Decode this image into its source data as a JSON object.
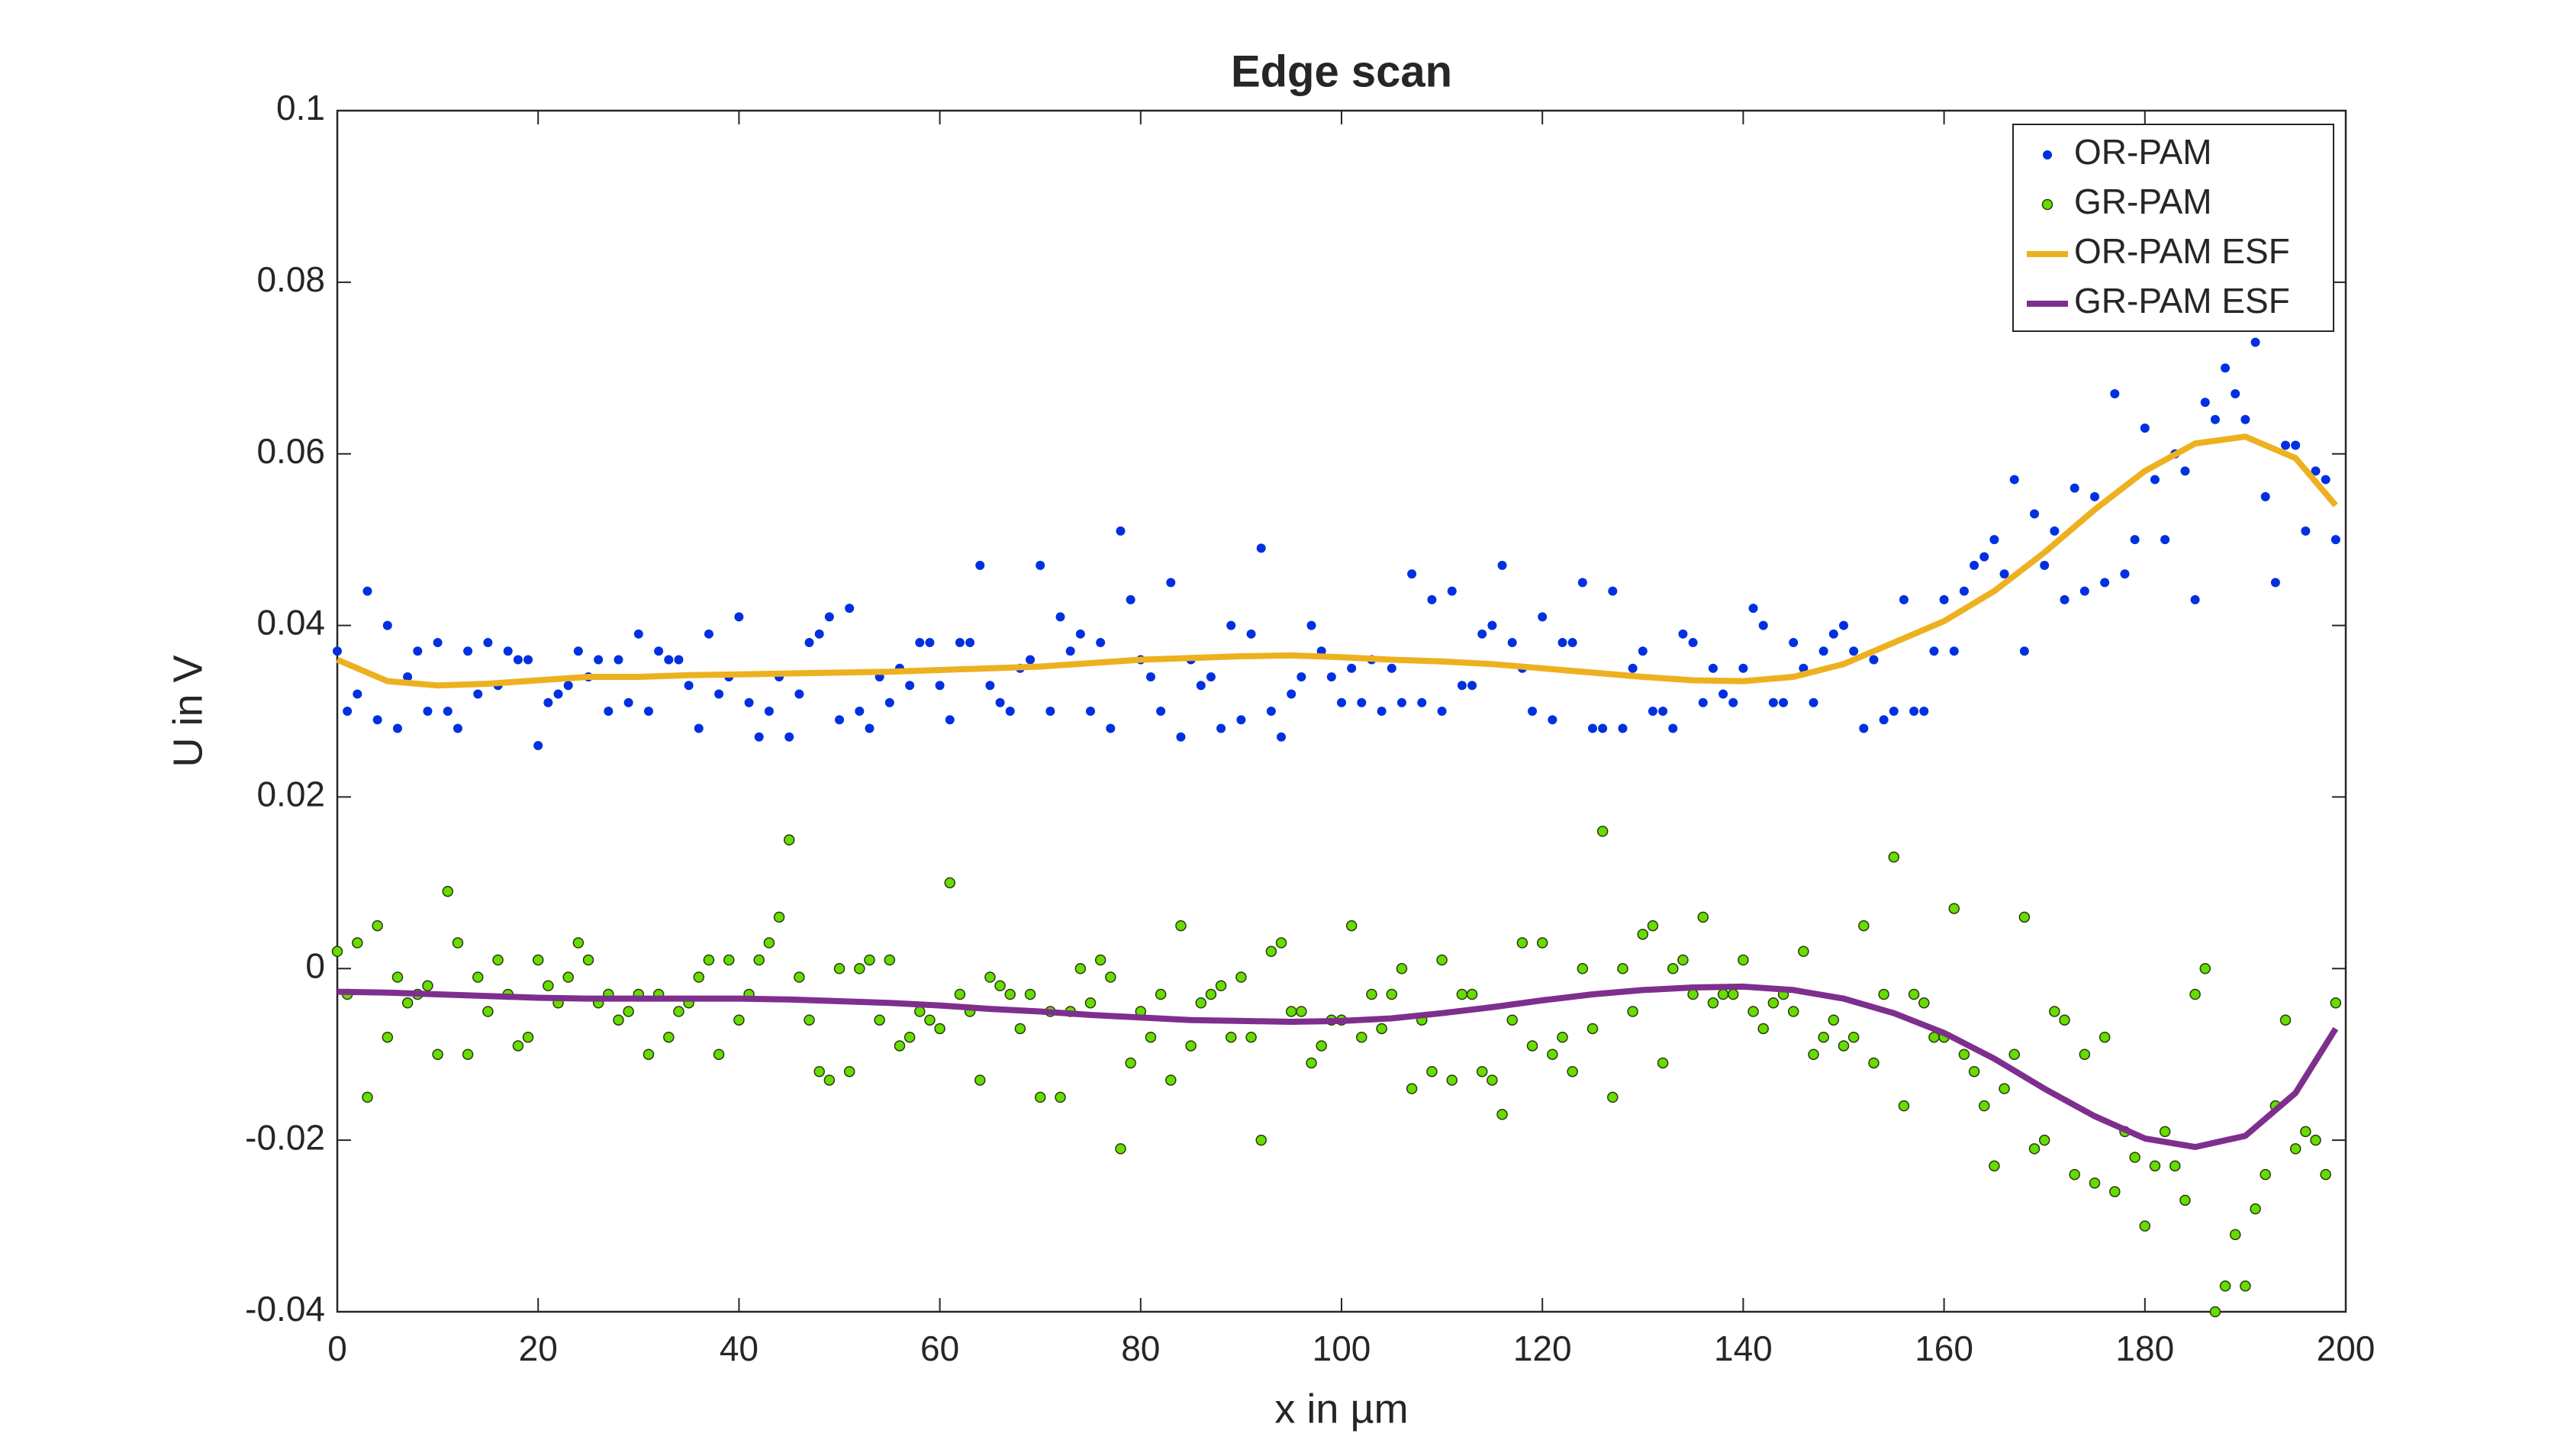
{
  "chart_data": {
    "type": "line",
    "title": "Edge scan",
    "x_label": "x in µm",
    "y_label": "U in V",
    "xlim": [
      0,
      200
    ],
    "xticks": [
      0,
      20,
      40,
      60,
      80,
      100,
      120,
      140,
      160,
      180,
      200
    ],
    "ylim": [
      -0.04,
      0.1
    ],
    "yticks": [
      -0.04,
      -0.02,
      0,
      0.02,
      0.04,
      0.06,
      0.08,
      0.1
    ],
    "legend": "upper right",
    "series": [
      {
        "name": "OR-PAM",
        "style": "markers",
        "color": "#0030e0",
        "x": [
          0,
          1,
          2,
          3,
          4,
          5,
          6,
          7,
          8,
          9,
          10,
          11,
          12,
          13,
          14,
          15,
          16,
          17,
          18,
          19,
          20,
          21,
          22,
          23,
          24,
          25,
          26,
          27,
          28,
          29,
          30,
          31,
          32,
          33,
          34,
          35,
          36,
          37,
          38,
          39,
          40,
          41,
          42,
          43,
          44,
          45,
          46,
          47,
          48,
          49,
          50,
          51,
          52,
          53,
          54,
          55,
          56,
          57,
          58,
          59,
          60,
          61,
          62,
          63,
          64,
          65,
          66,
          67,
          68,
          69,
          70,
          71,
          72,
          73,
          74,
          75,
          76,
          77,
          78,
          79,
          80,
          81,
          82,
          83,
          84,
          85,
          86,
          87,
          88,
          89,
          90,
          91,
          92,
          93,
          94,
          95,
          96,
          97,
          98,
          99,
          100,
          101,
          102,
          103,
          104,
          105,
          106,
          107,
          108,
          109,
          110,
          111,
          112,
          113,
          114,
          115,
          116,
          117,
          118,
          119,
          120,
          121,
          122,
          123,
          124,
          125,
          126,
          127,
          128,
          129,
          130,
          131,
          132,
          133,
          134,
          135,
          136,
          137,
          138,
          139,
          140,
          141,
          142,
          143,
          144,
          145,
          146,
          147,
          148,
          149,
          150,
          151,
          152,
          153,
          154,
          155,
          156,
          157,
          158,
          159,
          160,
          161,
          162,
          163,
          164,
          165,
          166,
          167,
          168,
          169,
          170,
          171,
          172,
          173,
          174,
          175,
          176,
          177,
          178,
          179,
          180,
          181,
          182,
          183,
          184,
          185,
          186,
          187,
          188,
          189,
          190,
          191,
          192,
          193,
          194,
          195,
          196,
          197,
          198,
          199
        ],
        "values": [
          0.037,
          0.03,
          0.032,
          0.044,
          0.029,
          0.04,
          0.028,
          0.034,
          0.037,
          0.03,
          0.038,
          0.03,
          0.028,
          0.037,
          0.032,
          0.038,
          0.033,
          0.037,
          0.036,
          0.036,
          0.026,
          0.031,
          0.032,
          0.033,
          0.037,
          0.034,
          0.036,
          0.03,
          0.036,
          0.031,
          0.039,
          0.03,
          0.037,
          0.036,
          0.036,
          0.033,
          0.028,
          0.039,
          0.032,
          0.034,
          0.041,
          0.031,
          0.027,
          0.03,
          0.034,
          0.027,
          0.032,
          0.038,
          0.039,
          0.041,
          0.029,
          0.042,
          0.03,
          0.028,
          0.034,
          0.031,
          0.035,
          0.033,
          0.038,
          0.038,
          0.033,
          0.029,
          0.038,
          0.038,
          0.047,
          0.033,
          0.031,
          0.03,
          0.035,
          0.036,
          0.047,
          0.03,
          0.041,
          0.037,
          0.039,
          0.03,
          0.038,
          0.028,
          0.051,
          0.043,
          0.036,
          0.034,
          0.03,
          0.045,
          0.027,
          0.036,
          0.033,
          0.034,
          0.028,
          0.04,
          0.029,
          0.039,
          0.049,
          0.03,
          0.027,
          0.032,
          0.034,
          0.04,
          0.037,
          0.034,
          0.031,
          0.035,
          0.031,
          0.036,
          0.03,
          0.035,
          0.031,
          0.046,
          0.031,
          0.043,
          0.03,
          0.044,
          0.033,
          0.033,
          0.039,
          0.04,
          0.047,
          0.038,
          0.035,
          0.03,
          0.041,
          0.029,
          0.038,
          0.038,
          0.045,
          0.028,
          0.028,
          0.044,
          0.028,
          0.035,
          0.037,
          0.03,
          0.03,
          0.028,
          0.039,
          0.038,
          0.031,
          0.035,
          0.032,
          0.031,
          0.035,
          0.042,
          0.04,
          0.031,
          0.031,
          0.038,
          0.035,
          0.031,
          0.037,
          0.039,
          0.04,
          0.037,
          0.028,
          0.036,
          0.029,
          0.03,
          0.043,
          0.03,
          0.03,
          0.037,
          0.043,
          0.037,
          0.044,
          0.047,
          0.048,
          0.05,
          0.046,
          0.057,
          0.037,
          0.053,
          0.047,
          0.051,
          0.043,
          0.056,
          0.044,
          0.055,
          0.045,
          0.067,
          0.046,
          0.05,
          0.063,
          0.057,
          0.05,
          0.06,
          0.058,
          0.043,
          0.066,
          0.064,
          0.07,
          0.067,
          0.064,
          0.073,
          0.055,
          0.045,
          0.061,
          0.061,
          0.051,
          0.058,
          0.057,
          0.05
        ]
      },
      {
        "name": "GR-PAM",
        "style": "markers",
        "color": "#66dd00",
        "x": [
          0,
          1,
          2,
          3,
          4,
          5,
          6,
          7,
          8,
          9,
          10,
          11,
          12,
          13,
          14,
          15,
          16,
          17,
          18,
          19,
          20,
          21,
          22,
          23,
          24,
          25,
          26,
          27,
          28,
          29,
          30,
          31,
          32,
          33,
          34,
          35,
          36,
          37,
          38,
          39,
          40,
          41,
          42,
          43,
          44,
          45,
          46,
          47,
          48,
          49,
          50,
          51,
          52,
          53,
          54,
          55,
          56,
          57,
          58,
          59,
          60,
          61,
          62,
          63,
          64,
          65,
          66,
          67,
          68,
          69,
          70,
          71,
          72,
          73,
          74,
          75,
          76,
          77,
          78,
          79,
          80,
          81,
          82,
          83,
          84,
          85,
          86,
          87,
          88,
          89,
          90,
          91,
          92,
          93,
          94,
          95,
          96,
          97,
          98,
          99,
          100,
          101,
          102,
          103,
          104,
          105,
          106,
          107,
          108,
          109,
          110,
          111,
          112,
          113,
          114,
          115,
          116,
          117,
          118,
          119,
          120,
          121,
          122,
          123,
          124,
          125,
          126,
          127,
          128,
          129,
          130,
          131,
          132,
          133,
          134,
          135,
          136,
          137,
          138,
          139,
          140,
          141,
          142,
          143,
          144,
          145,
          146,
          147,
          148,
          149,
          150,
          151,
          152,
          153,
          154,
          155,
          156,
          157,
          158,
          159,
          160,
          161,
          162,
          163,
          164,
          165,
          166,
          167,
          168,
          169,
          170,
          171,
          172,
          173,
          174,
          175,
          176,
          177,
          178,
          179,
          180,
          181,
          182,
          183,
          184,
          185,
          186,
          187,
          188,
          189,
          190,
          191,
          192,
          193,
          194,
          195,
          196,
          197,
          198,
          199
        ],
        "values": [
          0.002,
          -0.003,
          0.003,
          -0.015,
          0.005,
          -0.008,
          -0.001,
          -0.004,
          -0.003,
          -0.002,
          -0.01,
          0.009,
          0.003,
          -0.01,
          -0.001,
          -0.005,
          0.001,
          -0.003,
          -0.009,
          -0.008,
          0.001,
          -0.002,
          -0.004,
          -0.001,
          0.003,
          0.001,
          -0.004,
          -0.003,
          -0.006,
          -0.005,
          -0.003,
          -0.01,
          -0.003,
          -0.008,
          -0.005,
          -0.004,
          -0.001,
          0.001,
          -0.01,
          0.001,
          -0.006,
          -0.003,
          0.001,
          0.003,
          0.006,
          0.015,
          -0.001,
          -0.006,
          -0.012,
          -0.013,
          0.0,
          -0.012,
          0.0,
          0.001,
          -0.006,
          0.001,
          -0.009,
          -0.008,
          -0.005,
          -0.006,
          -0.007,
          0.01,
          -0.003,
          -0.005,
          -0.013,
          -0.001,
          -0.002,
          -0.003,
          -0.007,
          -0.003,
          -0.015,
          -0.005,
          -0.015,
          -0.005,
          0.0,
          -0.004,
          0.001,
          -0.001,
          -0.021,
          -0.011,
          -0.005,
          -0.008,
          -0.003,
          -0.013,
          0.005,
          -0.009,
          -0.004,
          -0.003,
          -0.002,
          -0.008,
          -0.001,
          -0.008,
          -0.02,
          0.002,
          0.003,
          -0.005,
          -0.005,
          -0.011,
          -0.009,
          -0.006,
          -0.006,
          0.005,
          -0.008,
          -0.003,
          -0.007,
          -0.003,
          0.0,
          -0.014,
          -0.006,
          -0.012,
          0.001,
          -0.013,
          -0.003,
          -0.003,
          -0.012,
          -0.013,
          -0.017,
          -0.006,
          0.003,
          -0.009,
          0.003,
          -0.01,
          -0.008,
          -0.012,
          0.0,
          -0.007,
          0.016,
          -0.015,
          0.0,
          -0.005,
          0.004,
          0.005,
          -0.011,
          0.0,
          0.001,
          -0.003,
          0.006,
          -0.004,
          -0.003,
          -0.003,
          0.001,
          -0.005,
          -0.007,
          -0.004,
          -0.003,
          -0.005,
          0.002,
          -0.01,
          -0.008,
          -0.006,
          -0.009,
          -0.008,
          0.005,
          -0.011,
          -0.003,
          0.013,
          -0.016,
          -0.003,
          -0.004,
          -0.008,
          -0.008,
          0.007,
          -0.01,
          -0.012,
          -0.016,
          -0.023,
          -0.014,
          -0.01,
          0.006,
          -0.021,
          -0.02,
          -0.005,
          -0.006,
          -0.024,
          -0.01,
          -0.025,
          -0.008,
          -0.026,
          -0.019,
          -0.022,
          -0.03,
          -0.023,
          -0.019,
          -0.023,
          -0.027,
          -0.003,
          0.0,
          -0.04,
          -0.037,
          -0.031,
          -0.037,
          -0.028,
          -0.024,
          -0.016,
          -0.006,
          -0.021,
          -0.019,
          -0.02,
          -0.024,
          -0.004
        ]
      },
      {
        "name": "OR-PAM ESF",
        "style": "line",
        "color": "#edb120",
        "x": [
          0,
          5,
          10,
          15,
          20,
          25,
          30,
          35,
          40,
          45,
          50,
          55,
          60,
          65,
          70,
          75,
          80,
          85,
          90,
          95,
          100,
          105,
          110,
          115,
          120,
          125,
          130,
          135,
          140,
          145,
          150,
          155,
          160,
          165,
          170,
          175,
          180,
          185,
          190,
          195,
          199
        ],
        "values": [
          0.036,
          0.0335,
          0.033,
          0.0332,
          0.0336,
          0.034,
          0.034,
          0.0342,
          0.0343,
          0.0344,
          0.0345,
          0.0346,
          0.0348,
          0.035,
          0.0352,
          0.0356,
          0.036,
          0.0362,
          0.0364,
          0.0365,
          0.0363,
          0.036,
          0.0358,
          0.0355,
          0.035,
          0.0345,
          0.034,
          0.0336,
          0.0335,
          0.034,
          0.0355,
          0.038,
          0.0405,
          0.044,
          0.0485,
          0.0535,
          0.058,
          0.0612,
          0.062,
          0.0595,
          0.054
        ]
      },
      {
        "name": "GR-PAM ESF",
        "style": "line",
        "color": "#7e2f8e",
        "x": [
          0,
          5,
          10,
          15,
          20,
          25,
          30,
          35,
          40,
          45,
          50,
          55,
          60,
          65,
          70,
          75,
          80,
          85,
          90,
          95,
          100,
          105,
          110,
          115,
          120,
          125,
          130,
          135,
          140,
          145,
          150,
          155,
          160,
          165,
          170,
          175,
          180,
          185,
          190,
          195,
          199
        ],
        "values": [
          -0.0027,
          -0.0028,
          -0.003,
          -0.0032,
          -0.0034,
          -0.0035,
          -0.0035,
          -0.0035,
          -0.0035,
          -0.0036,
          -0.0038,
          -0.004,
          -0.0043,
          -0.0047,
          -0.005,
          -0.0054,
          -0.0057,
          -0.006,
          -0.0061,
          -0.0062,
          -0.0061,
          -0.0058,
          -0.0052,
          -0.0045,
          -0.0037,
          -0.003,
          -0.0025,
          -0.0022,
          -0.0021,
          -0.0025,
          -0.0035,
          -0.0052,
          -0.0075,
          -0.0105,
          -0.014,
          -0.0172,
          -0.0198,
          -0.0208,
          -0.0195,
          -0.0145,
          -0.007
        ]
      }
    ]
  }
}
